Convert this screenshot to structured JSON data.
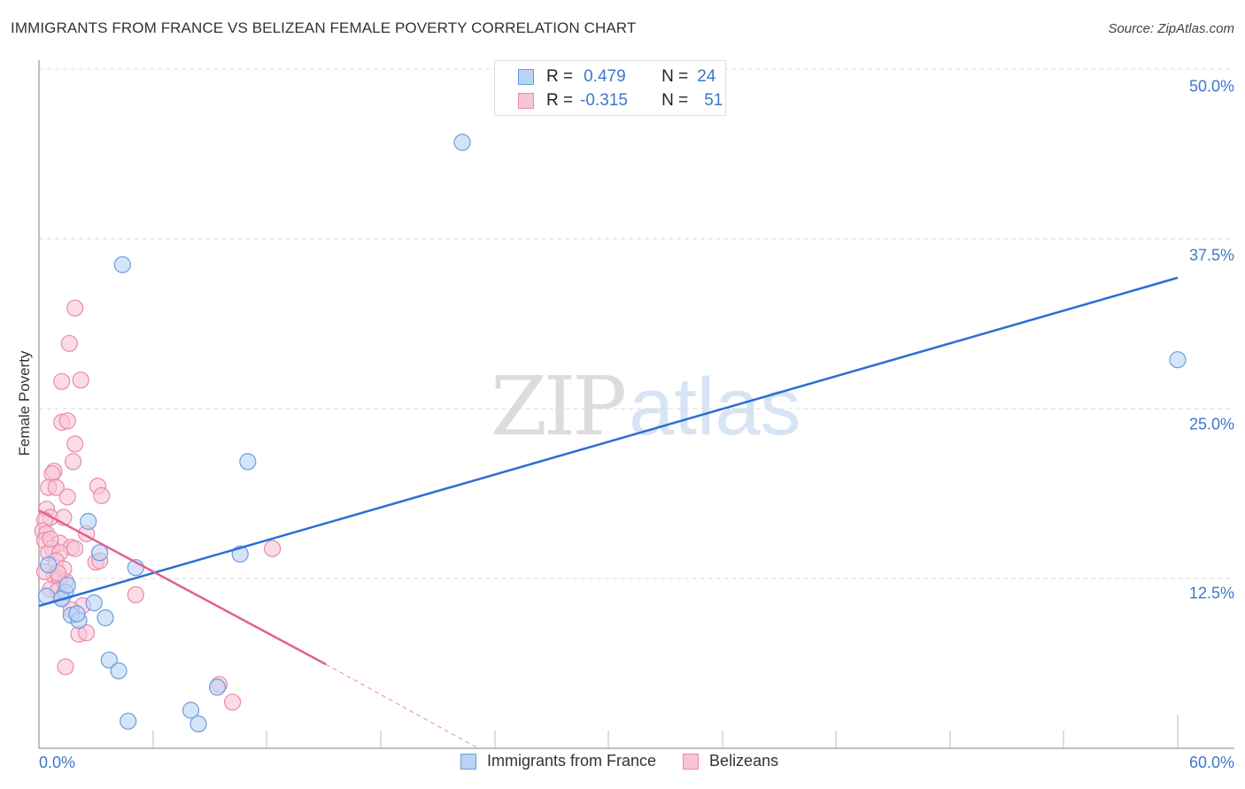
{
  "header": {
    "title": "IMMIGRANTS FROM FRANCE VS BELIZEAN FEMALE POVERTY CORRELATION CHART",
    "source": "Source: ZipAtlas.com"
  },
  "axes": {
    "ylabel": "Female Poverty",
    "y_ticks": [
      "50.0%",
      "37.5%",
      "25.0%",
      "12.5%"
    ],
    "x_min_label": "0.0%",
    "x_max_label": "60.0%"
  },
  "legend": {
    "series1": {
      "r_label": "R =",
      "r_value": "0.479",
      "n_label": "N =",
      "n_value": "24"
    },
    "series2": {
      "r_label": "R =",
      "r_value": "-0.315",
      "n_label": "N =",
      "n_value": "51"
    }
  },
  "bottom_legend": {
    "series1": "Immigrants from France",
    "series2": "Belizeans"
  },
  "watermark": {
    "zip": "ZIP",
    "atlas": "atlas"
  },
  "colors": {
    "blue_fill": "#b9d3f5",
    "blue_stroke": "#6a9be0",
    "blue_line": "#2a6fd4",
    "pink_fill": "#f8c4d6",
    "pink_stroke": "#e88aab",
    "pink_line": "#e0628f",
    "tick_text": "#3b78c9"
  },
  "chart_data": {
    "type": "scatter",
    "title": "IMMIGRANTS FROM FRANCE VS BELIZEAN FEMALE POVERTY CORRELATION CHART",
    "xlabel": "Immigrants from France",
    "ylabel": "Female Poverty",
    "xlim": [
      0,
      60
    ],
    "ylim": [
      0,
      50
    ],
    "x_unit": "%",
    "y_unit": "%",
    "y_ticks": [
      12.5,
      25.0,
      37.5,
      50.0
    ],
    "grid": "horizontal dashed",
    "legend_position": "top-center and bottom",
    "series": [
      {
        "name": "Immigrants from France",
        "R": 0.479,
        "N": 24,
        "trend": {
          "x": [
            0,
            60
          ],
          "y": [
            10.5,
            34.7
          ]
        },
        "points": [
          [
            22.3,
            44.6
          ],
          [
            4.4,
            35.6
          ],
          [
            60.0,
            28.6
          ],
          [
            11.0,
            21.1
          ],
          [
            2.6,
            16.7
          ],
          [
            3.2,
            14.4
          ],
          [
            10.6,
            14.3
          ],
          [
            5.1,
            13.3
          ],
          [
            0.5,
            13.5
          ],
          [
            0.4,
            11.2
          ],
          [
            1.4,
            11.5
          ],
          [
            1.2,
            11.0
          ],
          [
            1.5,
            12.0
          ],
          [
            1.7,
            9.8
          ],
          [
            2.9,
            10.7
          ],
          [
            2.1,
            9.4
          ],
          [
            3.5,
            9.6
          ],
          [
            3.7,
            6.5
          ],
          [
            4.2,
            5.7
          ],
          [
            9.4,
            4.5
          ],
          [
            8.0,
            2.8
          ],
          [
            8.4,
            1.8
          ],
          [
            4.7,
            2.0
          ],
          [
            2.0,
            9.9
          ]
        ]
      },
      {
        "name": "Belizeans",
        "R": -0.315,
        "N": 51,
        "trend": {
          "x": [
            0,
            15.1
          ],
          "y": [
            17.4,
            6.1
          ],
          "dashed_extension": {
            "x": [
              15.1,
              23.1
            ],
            "y": [
              6.1,
              0
            ]
          }
        },
        "points": [
          [
            1.9,
            32.4
          ],
          [
            1.6,
            29.8
          ],
          [
            2.2,
            27.1
          ],
          [
            1.2,
            27.0
          ],
          [
            1.2,
            24.0
          ],
          [
            1.5,
            24.1
          ],
          [
            1.9,
            22.4
          ],
          [
            1.8,
            21.1
          ],
          [
            0.8,
            20.4
          ],
          [
            0.7,
            20.2
          ],
          [
            0.5,
            19.2
          ],
          [
            0.9,
            19.2
          ],
          [
            3.1,
            19.3
          ],
          [
            3.3,
            18.6
          ],
          [
            1.5,
            18.5
          ],
          [
            0.4,
            17.6
          ],
          [
            0.6,
            17.0
          ],
          [
            1.3,
            17.0
          ],
          [
            0.3,
            16.8
          ],
          [
            0.2,
            16.0
          ],
          [
            0.4,
            15.8
          ],
          [
            0.3,
            15.3
          ],
          [
            2.5,
            15.8
          ],
          [
            1.1,
            15.1
          ],
          [
            0.7,
            14.7
          ],
          [
            1.7,
            14.8
          ],
          [
            1.9,
            14.7
          ],
          [
            0.5,
            14.4
          ],
          [
            1.1,
            14.4
          ],
          [
            0.9,
            13.8
          ],
          [
            3.0,
            13.7
          ],
          [
            3.2,
            13.8
          ],
          [
            0.8,
            12.7
          ],
          [
            1.1,
            12.5
          ],
          [
            1.4,
            12.3
          ],
          [
            0.6,
            11.7
          ],
          [
            1.2,
            11.1
          ],
          [
            1.0,
            11.6
          ],
          [
            5.1,
            11.3
          ],
          [
            2.3,
            10.5
          ],
          [
            2.1,
            8.4
          ],
          [
            2.5,
            8.5
          ],
          [
            1.4,
            6.0
          ],
          [
            12.3,
            14.7
          ],
          [
            9.5,
            4.7
          ],
          [
            10.2,
            3.4
          ],
          [
            1.7,
            10.2
          ],
          [
            0.3,
            13.0
          ],
          [
            0.6,
            15.4
          ],
          [
            1.3,
            13.2
          ],
          [
            1.0,
            12.9
          ]
        ]
      }
    ]
  }
}
